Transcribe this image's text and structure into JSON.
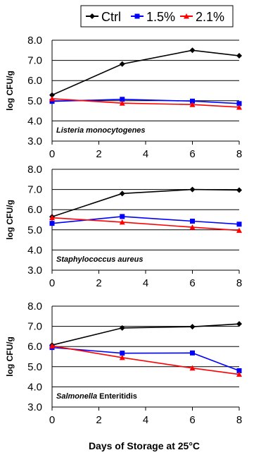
{
  "chart_data": {
    "type": "line",
    "x": [
      0,
      3,
      6,
      8
    ],
    "xlim": [
      0,
      8
    ],
    "xticks": [
      "0",
      "2",
      "4",
      "6",
      "8"
    ],
    "ylim": [
      3.0,
      8.0
    ],
    "yticks": [
      "3.0",
      "4.0",
      "5.0",
      "6.0",
      "7.0",
      "8.0"
    ],
    "ylabel": "log CFU/g",
    "xlabel": "Days of Storage at 25°C",
    "grid": "horizontal",
    "legend_position": "top-right",
    "legend": [
      {
        "name": "Ctrl",
        "color": "#000000",
        "marker": "diamond"
      },
      {
        "name": "1.5%",
        "color": "#0000ff",
        "marker": "square"
      },
      {
        "name": "2.1%",
        "color": "#ff0000",
        "marker": "triangle"
      }
    ],
    "panels": [
      {
        "annotation": "Listeria monocytogenes",
        "annotation_parts": [
          {
            "text": "Listeria monocytogenes",
            "italic": true
          }
        ],
        "series": [
          {
            "name": "Ctrl",
            "values": [
              5.28,
              6.82,
              7.5,
              7.23
            ]
          },
          {
            "name": "1.5%",
            "values": [
              4.97,
              5.07,
              4.98,
              4.86
            ]
          },
          {
            "name": "2.1%",
            "values": [
              5.1,
              4.88,
              4.81,
              4.68
            ]
          }
        ]
      },
      {
        "annotation": "Staphylococcus aureus",
        "annotation_parts": [
          {
            "text": "Staphylococcus aureus",
            "italic": true
          }
        ],
        "series": [
          {
            "name": "Ctrl",
            "values": [
              5.65,
              6.8,
              7.0,
              6.97
            ]
          },
          {
            "name": "1.5%",
            "values": [
              5.32,
              5.66,
              5.43,
              5.28
            ]
          },
          {
            "name": "2.1%",
            "values": [
              5.6,
              5.38,
              5.13,
              4.97
            ]
          }
        ]
      },
      {
        "annotation": "Salmonella Enteritidis",
        "annotation_parts": [
          {
            "text": "Salmonella",
            "italic": true
          },
          {
            "text": " Enteritidis",
            "italic": false
          }
        ],
        "series": [
          {
            "name": "Ctrl",
            "values": [
              6.07,
              6.92,
              6.98,
              7.12
            ]
          },
          {
            "name": "1.5%",
            "values": [
              5.95,
              5.67,
              5.68,
              4.8
            ]
          },
          {
            "name": "2.1%",
            "values": [
              6.03,
              5.45,
              4.93,
              4.62
            ]
          }
        ]
      }
    ]
  }
}
